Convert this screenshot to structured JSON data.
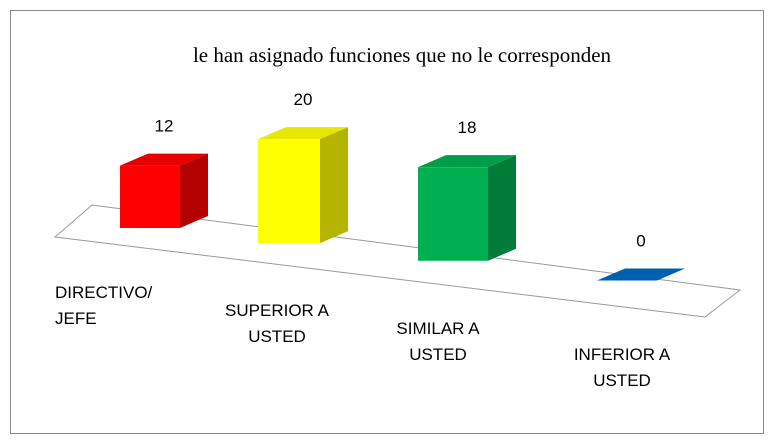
{
  "chart_data": {
    "type": "bar3d",
    "title": "le han asignado funciones que no le corresponden",
    "categories": [
      "DIRECTIVO/ JEFE",
      "SUPERIOR A USTED",
      "SIMILAR A USTED",
      "INFERIOR A USTED"
    ],
    "values": [
      12,
      20,
      18,
      0
    ],
    "colors": [
      "#ff0000",
      "#ffff00",
      "#00b050",
      "#0060b0"
    ]
  }
}
